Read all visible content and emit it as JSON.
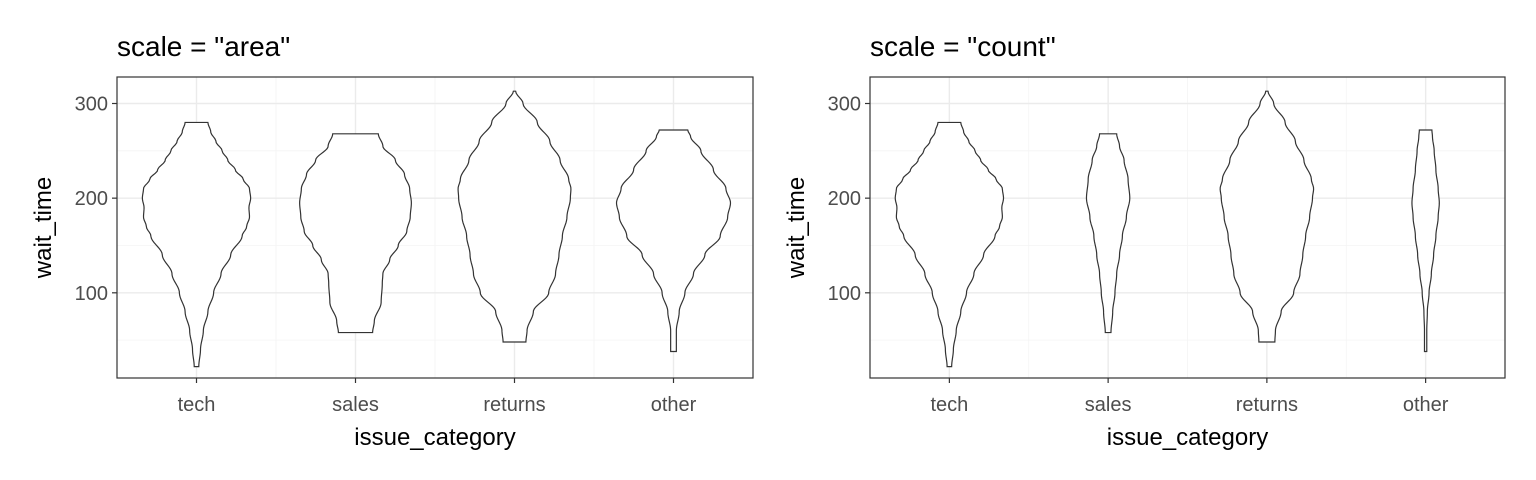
{
  "chart_data": [
    {
      "type": "violin",
      "title": "scale = \"area\"",
      "xlabel": "issue_category",
      "ylabel": "wait_time",
      "categories": [
        "tech",
        "sales",
        "returns",
        "other"
      ],
      "ylim": [
        10,
        328
      ],
      "yticks": [
        100,
        200,
        300
      ],
      "grid": true,
      "violins": [
        {
          "category": "tech",
          "min": 22,
          "max": 280,
          "width_y": [
            22,
            40,
            60,
            80,
            100,
            120,
            140,
            160,
            170,
            180,
            190,
            200,
            210,
            220,
            230,
            240,
            250,
            260,
            270,
            280
          ],
          "width_rel": [
            0.04,
            0.07,
            0.12,
            0.2,
            0.3,
            0.43,
            0.6,
            0.8,
            0.88,
            0.93,
            0.92,
            0.95,
            0.93,
            0.82,
            0.68,
            0.55,
            0.45,
            0.34,
            0.25,
            0.2
          ]
        },
        {
          "category": "sales",
          "min": 58,
          "max": 268,
          "width_y": [
            58,
            70,
            90,
            110,
            120,
            135,
            150,
            165,
            180,
            195,
            210,
            225,
            240,
            255,
            268
          ],
          "width_rel": [
            0.3,
            0.33,
            0.45,
            0.47,
            0.48,
            0.6,
            0.75,
            0.9,
            0.96,
            0.98,
            0.95,
            0.86,
            0.7,
            0.48,
            0.4
          ]
        },
        {
          "category": "returns",
          "min": 48,
          "max": 313,
          "width_y": [
            48,
            60,
            80,
            100,
            120,
            140,
            160,
            180,
            200,
            210,
            220,
            240,
            260,
            280,
            300,
            313
          ],
          "width_rel": [
            0.2,
            0.22,
            0.33,
            0.6,
            0.72,
            0.78,
            0.84,
            0.92,
            0.98,
            0.99,
            0.95,
            0.8,
            0.62,
            0.4,
            0.15,
            0.02
          ]
        },
        {
          "category": "other",
          "min": 38,
          "max": 272,
          "width_y": [
            38,
            60,
            80,
            100,
            120,
            140,
            160,
            180,
            195,
            210,
            230,
            250,
            265,
            272
          ],
          "width_rel": [
            0.05,
            0.05,
            0.1,
            0.2,
            0.35,
            0.55,
            0.82,
            0.95,
            1.0,
            0.92,
            0.7,
            0.48,
            0.3,
            0.25
          ]
        }
      ]
    },
    {
      "type": "violin",
      "title": "scale = \"count\"",
      "xlabel": "issue_category",
      "ylabel": "wait_time",
      "categories": [
        "tech",
        "sales",
        "returns",
        "other"
      ],
      "ylim": [
        10,
        328
      ],
      "yticks": [
        100,
        200,
        300
      ],
      "grid": true,
      "violins": [
        {
          "category": "tech",
          "min": 22,
          "max": 280,
          "width_y": [
            22,
            40,
            60,
            80,
            100,
            120,
            140,
            160,
            170,
            180,
            190,
            200,
            210,
            220,
            230,
            240,
            250,
            260,
            270,
            280
          ],
          "width_rel": [
            0.04,
            0.07,
            0.12,
            0.2,
            0.3,
            0.43,
            0.6,
            0.8,
            0.88,
            0.93,
            0.92,
            0.95,
            0.93,
            0.82,
            0.68,
            0.55,
            0.45,
            0.34,
            0.25,
            0.2
          ]
        },
        {
          "category": "sales",
          "min": 58,
          "max": 268,
          "width_y": [
            58,
            80,
            100,
            120,
            140,
            160,
            180,
            200,
            220,
            240,
            255,
            268
          ],
          "width_rel": [
            0.05,
            0.08,
            0.12,
            0.15,
            0.2,
            0.25,
            0.32,
            0.38,
            0.35,
            0.28,
            0.2,
            0.15
          ]
        },
        {
          "category": "returns",
          "min": 48,
          "max": 313,
          "width_y": [
            48,
            60,
            80,
            100,
            120,
            140,
            160,
            180,
            200,
            210,
            220,
            240,
            260,
            280,
            300,
            313
          ],
          "width_rel": [
            0.14,
            0.15,
            0.25,
            0.47,
            0.58,
            0.63,
            0.68,
            0.75,
            0.8,
            0.82,
            0.78,
            0.65,
            0.5,
            0.32,
            0.12,
            0.02
          ]
        },
        {
          "category": "other",
          "min": 38,
          "max": 272,
          "width_y": [
            38,
            60,
            80,
            100,
            120,
            140,
            160,
            180,
            195,
            210,
            230,
            250,
            265,
            272
          ],
          "width_rel": [
            0.02,
            0.02,
            0.03,
            0.06,
            0.1,
            0.14,
            0.18,
            0.22,
            0.24,
            0.22,
            0.18,
            0.15,
            0.12,
            0.11
          ]
        }
      ]
    }
  ]
}
